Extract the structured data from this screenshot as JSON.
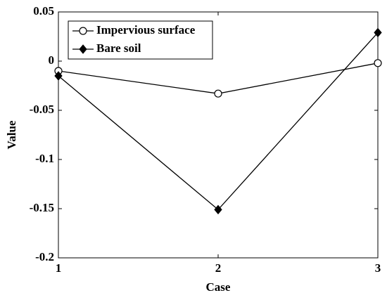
{
  "chart_data": {
    "type": "line",
    "x_label": "Case",
    "y_label": "Value",
    "x": [
      1,
      2,
      3
    ],
    "series": [
      {
        "name": "Impervious surface",
        "color": "#000000",
        "marker": "circle",
        "values": [
          -0.01,
          -0.033,
          -0.002
        ]
      },
      {
        "name": "Bare soil",
        "color": "#000000",
        "marker": "diamond",
        "values": [
          -0.015,
          -0.151,
          0.029
        ]
      }
    ],
    "xlim": [
      1,
      3
    ],
    "xticks": [
      1,
      2,
      3
    ],
    "ylim": [
      -0.2,
      0.05
    ],
    "yticks": [
      -0.2,
      -0.15,
      -0.1,
      -0.05,
      0,
      0.05
    ],
    "grid": false,
    "legend": "upper left"
  }
}
